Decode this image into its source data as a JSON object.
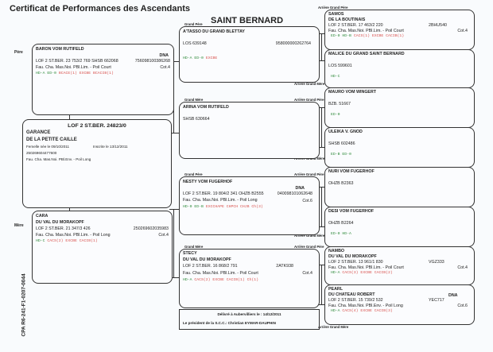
{
  "title": "Certificat de Performances des Ascendants",
  "breed": "SAINT BERNARD",
  "labels": {
    "pere": "Père",
    "mere": "Mère",
    "grand_pere": "Grand Père",
    "grand_mere": "Grand Mère",
    "ag_pere": "Arrière Grand Père",
    "ag_mere": "Arrière Grand Mère",
    "dna": "DNA"
  },
  "subject": {
    "reg": "LOF 2 ST.BER. 24823/0",
    "name": "GARANCE",
    "affix": "DE LA PETITE CAILLE",
    "born": "Femelle née le 09/10/2011",
    "inscribed": "Inscrite le 13/12/2011",
    "chip": "250269604477600",
    "color": "Fau. Cha. Mas.Noi. PBl.Env. - Poil Long"
  },
  "father": {
    "name": "BARON VOM RUTIFELD",
    "reg": "LOF 2 ST.BER. 23 753/2 769 SHSB 662068",
    "id": "756098100386268",
    "color": "Fau. Cha. Mas.Noi. PBl.Lim. - Poil Court",
    "cot": "Cot.4",
    "codes_g": "HD-A ED-0",
    "codes_r": "BCACE(1) EXCBE BCACIB(1)"
  },
  "mother": {
    "name": "CARA",
    "affix": "DU VAL DU MORAKOPF",
    "reg": "LOF 2 ST.BER. 21 347/3 426",
    "id": "250269602035983",
    "color": "Fau. Cha. Mas.Noi. PBl.Lim. - Poil Long",
    "cot": "Cot.4",
    "codes_g": "HD-C",
    "codes_r": "CACS(2) EXCBE CACIB(1)"
  },
  "gp1": {
    "name": "A'TASSO DU GRAND BLETTAY",
    "reg": "LOS 639148",
    "id": "958000000262764",
    "codes_g": "HD-A ED-0",
    "codes_r": "EXCBE"
  },
  "gm1": {
    "name": "ARINA VOM RUTIFELD",
    "reg": "SHSB 630664"
  },
  "gp2": {
    "name": "NESTY VOM FUGERHOF",
    "reg": "LOF 2 ST.BER. 19 804/2 341 OHZB B2555",
    "id": "040098101062648",
    "color": "Fau. Cha. Mas.Noi. PBl.Lim. - Poil Long",
    "cot": "Cot.6",
    "codes_g": "HD-0 ED-B",
    "codes_r": "EXCCHAPE CHPCH CHJB Ch(3)"
  },
  "gm2": {
    "name": "STECY",
    "affix": "DU VAL DU MORAKOPF",
    "reg": "LOF 2 ST.BER. 16 868/2 791",
    "id": "2ATK938",
    "color": "Fau. Cha. Mas.Noi. PBl.Lim. - Poil Court",
    "cot": "Cot.4",
    "codes_g": "HD-A",
    "codes_r": "CACS(2) EXCBE CACIB(1) Ch(1)"
  },
  "ggp": [
    {
      "name": "SAMOS",
      "affix": "DE LA BOUTINAIS",
      "reg": "LOF 2 ST.BER. 17 463/2 220",
      "id": "2BHU540",
      "color": "Fau. Cha. Mas.Noi. PBl.Lim. - Poil Court",
      "cot": "Cot.4",
      "codes_g": "ED-0 HD-B",
      "codes_r": "CACS(1) EXCBE CACIB(1)"
    },
    {
      "name": "MALICE DU GRAND SAINT BERNARD",
      "reg": "LOS 599601",
      "codes_g": "HD-C",
      "codes_r": ""
    },
    {
      "name": "MAURO VOM WINGERT",
      "reg": "BZB. 51667",
      "codes_g": "ED-0",
      "codes_r": ""
    },
    {
      "name": "ULEIKA V. GNOD",
      "reg": "SHSB 602486",
      "codes_g": "ED-B ED-0",
      "codes_r": ""
    },
    {
      "name": "NURI VOM FUGERHOF",
      "reg": "OHZB B2363",
      "codes_g": "",
      "codes_r": ""
    },
    {
      "name": "DESI VOM FUGERHOF",
      "reg": "OHZB B2264",
      "codes_g": "ED-0 HD-A",
      "codes_r": ""
    },
    {
      "name": "NAMBO",
      "affix": "DU VAL DU MORAKOPF",
      "reg": "LOF 2 ST.BER. 13 961/1 830",
      "id": "VGZ333",
      "color": "Fau. Cha. Mas.Noi. PBl.Lim. - Poil Court",
      "cot": "Cot.4",
      "codes_g": "HD-A",
      "codes_r": "CACS(3) EXCBE CACIB(2)"
    },
    {
      "name": "PEARL",
      "affix": "DU CHATEAU ROBERT",
      "reg": "LOF 2 ST.BER. 15 739/2 532",
      "id": "YEC717",
      "color": "Fau. Cha. Mas.Noi. PBl.Env. - Poil Long",
      "cot": "Cot.6",
      "codes_g": "HD-A",
      "codes_r": "CACS(4) EXCBE CACIB(3)"
    }
  ],
  "delivery": {
    "line1": "Délivré à Aubervilliers le : 14/12/2011",
    "line2": "Le président de la S.C.C.: Christian EYMAR-DAUPHIN"
  },
  "cpa": "CPA    R6-241-F1-0207-0044"
}
